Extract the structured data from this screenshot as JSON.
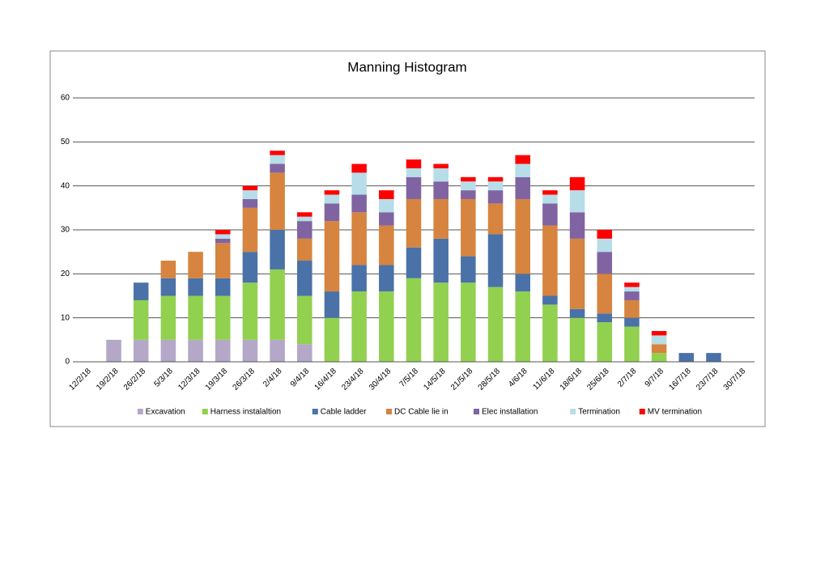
{
  "chart_data": {
    "type": "stacked-bar",
    "title": "Manning Histogram",
    "categories": [
      "12/2/18",
      "19/2/18",
      "26/2/18",
      "5/3/18",
      "12/3/18",
      "19/3/18",
      "26/3/18",
      "2/4/18",
      "9/4/18",
      "16/4/18",
      "23/4/18",
      "30/4/18",
      "7/5/18",
      "14/5/18",
      "21/5/18",
      "28/5/18",
      "4/6/18",
      "11/6/18",
      "18/6/18",
      "25/6/18",
      "2/7/18",
      "9/7/18",
      "16/7/18",
      "23/7/18",
      "30/7/18"
    ],
    "series": [
      {
        "name": "Excavation",
        "color": "#b4a7c8",
        "values": [
          0,
          5,
          5,
          5,
          5,
          5,
          5,
          5,
          4,
          0,
          0,
          0,
          0,
          0,
          0,
          0,
          0,
          0,
          0,
          0,
          0,
          0,
          0,
          0,
          0
        ]
      },
      {
        "name": "Harness instalaltion",
        "color": "#92d050",
        "values": [
          0,
          0,
          9,
          10,
          10,
          10,
          13,
          16,
          11,
          10,
          16,
          16,
          19,
          18,
          18,
          17,
          16,
          13,
          10,
          9,
          8,
          2,
          0,
          0,
          0
        ]
      },
      {
        "name": "Cable ladder",
        "color": "#4a72a8",
        "values": [
          0,
          0,
          4,
          4,
          4,
          4,
          7,
          9,
          8,
          6,
          6,
          6,
          7,
          10,
          6,
          12,
          4,
          2,
          2,
          2,
          2,
          0,
          2,
          2,
          0
        ]
      },
      {
        "name": "DC Cable lie in",
        "color": "#d6843f",
        "values": [
          0,
          0,
          0,
          4,
          6,
          8,
          10,
          13,
          5,
          16,
          12,
          9,
          11,
          9,
          13,
          7,
          17,
          16,
          16,
          9,
          4,
          2,
          0,
          0,
          0
        ]
      },
      {
        "name": "Elec installation",
        "color": "#8064a2",
        "values": [
          0,
          0,
          0,
          0,
          0,
          1,
          2,
          2,
          4,
          4,
          4,
          3,
          5,
          4,
          2,
          3,
          5,
          5,
          6,
          5,
          2,
          0,
          0,
          0,
          0
        ]
      },
      {
        "name": "Termination",
        "color": "#b7dde8",
        "values": [
          0,
          0,
          0,
          0,
          0,
          1,
          2,
          2,
          1,
          2,
          5,
          3,
          2,
          3,
          2,
          2,
          3,
          2,
          5,
          3,
          1,
          2,
          0,
          0,
          0
        ]
      },
      {
        "name": "MV termination",
        "color": "#ff0000",
        "values": [
          0,
          0,
          0,
          0,
          0,
          1,
          1,
          1,
          1,
          1,
          2,
          2,
          2,
          1,
          1,
          1,
          2,
          1,
          3,
          2,
          1,
          1,
          0,
          0,
          0
        ]
      }
    ],
    "ylim": [
      0,
      60
    ],
    "yticks": [
      0,
      10,
      20,
      30,
      40,
      50,
      60
    ],
    "grid": true,
    "legend": "bottom"
  }
}
